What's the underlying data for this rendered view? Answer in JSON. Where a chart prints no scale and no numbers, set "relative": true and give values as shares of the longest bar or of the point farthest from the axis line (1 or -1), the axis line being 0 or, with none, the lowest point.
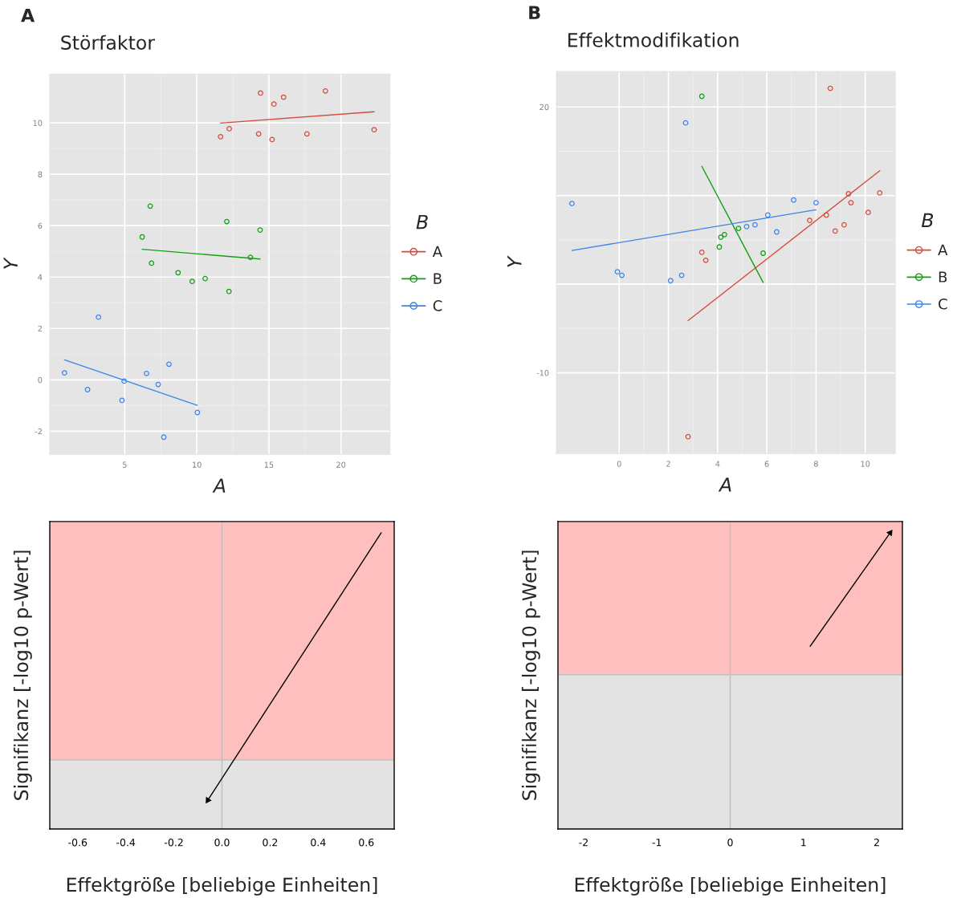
{
  "chart_data": [
    {
      "type": "scatter",
      "title": "Störfaktor",
      "xlabel": "A",
      "ylabel": "Y",
      "legend_title": "B",
      "annotations": [
        "A"
      ],
      "xlim": [
        -0.2,
        23.4
      ],
      "ylim": [
        -2.9,
        11.9
      ],
      "xticks": [
        5,
        10,
        15,
        20
      ],
      "yticks": [
        -2,
        0,
        2,
        4,
        6,
        8,
        10
      ],
      "grid": true,
      "legend": "right",
      "marker": "circle",
      "series": [
        {
          "name": "A",
          "color": "#d44b3d",
          "x": [
            11.65,
            12.25,
            14.42,
            14.29,
            15.22,
            15.35,
            16.02,
            17.64,
            18.92,
            22.3
          ],
          "values": [
            9.46,
            9.77,
            11.16,
            9.57,
            9.35,
            10.73,
            11.0,
            9.57,
            11.24,
            9.73
          ]
        },
        {
          "name": "B",
          "color": "#10a010",
          "x": [
            6.77,
            6.21,
            6.86,
            8.7,
            9.68,
            10.58,
            12.08,
            12.23,
            13.72,
            14.39
          ],
          "values": [
            6.76,
            5.56,
            4.54,
            4.17,
            3.83,
            3.94,
            6.16,
            3.44,
            4.77,
            5.83
          ]
        },
        {
          "name": "C",
          "color": "#3d85e8",
          "x": [
            0.82,
            2.42,
            3.18,
            4.81,
            4.96,
            6.51,
            7.32,
            8.07,
            7.71,
            10.04
          ],
          "values": [
            0.27,
            -0.38,
            2.44,
            -0.8,
            -0.05,
            0.25,
            -0.18,
            0.61,
            -2.23,
            -1.27
          ]
        },
        {
          "type": "line",
          "marker": "none",
          "color": "#d44b3d",
          "x": [
            11.65,
            22.3
          ],
          "values": [
            9.99,
            10.43
          ]
        },
        {
          "type": "line",
          "marker": "none",
          "color": "#10a010",
          "x": [
            6.21,
            14.39
          ],
          "values": [
            5.08,
            4.7
          ]
        },
        {
          "type": "line",
          "marker": "none",
          "color": "#3d85e8",
          "x": [
            0.82,
            10.04
          ],
          "values": [
            0.78,
            -0.99
          ]
        }
      ]
    },
    {
      "type": "scatter",
      "title": "Effektmodifikation",
      "xlabel": "A",
      "ylabel": "Y",
      "legend_title": "B",
      "annotations": [
        "B"
      ],
      "xlim": [
        -2.55,
        11.22
      ],
      "ylim": [
        -19.1,
        24.0
      ],
      "xticks": [
        0,
        2,
        4,
        6,
        8,
        10
      ],
      "yticks": [
        {
          "value": -10,
          "label": "-10"
        },
        {
          "value": 0,
          "label": null
        },
        {
          "value": 10,
          "label": null
        },
        20
      ],
      "grid": true,
      "legend": "right",
      "marker": "circle",
      "series": [
        {
          "name": "A",
          "color": "#d44b3d",
          "x": [
            8.58,
            3.36,
            3.52,
            2.8,
            7.74,
            8.42,
            8.78,
            9.14,
            9.32,
            9.42,
            10.12,
            10.59
          ],
          "values": [
            22.1,
            3.6,
            2.7,
            -17.2,
            7.2,
            7.8,
            6.0,
            6.7,
            10.2,
            9.2,
            8.1,
            10.3
          ]
        },
        {
          "name": "B",
          "color": "#10a010",
          "x": [
            3.36,
            4.07,
            4.13,
            4.28,
            4.85,
            5.85
          ],
          "values": [
            21.2,
            4.2,
            5.3,
            5.6,
            6.3,
            3.5
          ]
        },
        {
          "name": "C",
          "color": "#3d85e8",
          "x": [
            -1.92,
            -0.07,
            0.11,
            2.09,
            2.54,
            2.7,
            5.18,
            5.52,
            6.04,
            6.4,
            7.09,
            8.0
          ],
          "values": [
            9.1,
            1.4,
            1.0,
            0.4,
            1.0,
            18.2,
            6.5,
            6.7,
            7.8,
            5.9,
            9.5,
            9.2
          ]
        },
        {
          "type": "line",
          "marker": "none",
          "color": "#d44b3d",
          "x": [
            2.8,
            10.59
          ],
          "values": [
            -4.1,
            12.8
          ]
        },
        {
          "type": "line",
          "marker": "none",
          "color": "#10a010",
          "x": [
            3.36,
            5.85
          ],
          "values": [
            13.3,
            0.2
          ]
        },
        {
          "type": "line",
          "marker": "none",
          "color": "#3d85e8",
          "x": [
            -1.92,
            8.0
          ],
          "values": [
            3.8,
            8.4
          ]
        }
      ]
    },
    {
      "type": "line",
      "xlabel": "Effektgröße [beliebige Einheiten]",
      "ylabel": "Signifikanz [-log10 p-Wert]",
      "relative": true,
      "xlim": [
        -0.716,
        0.716
      ],
      "xticks": [
        -0.6,
        -0.4,
        -0.2,
        {
          "value": 0,
          "label": "0.0"
        },
        0.2,
        0.4,
        0.6
      ],
      "tick_labels": "x",
      "ref_lines": [
        {
          "axis": "x",
          "value": 0,
          "color": "#bebebe"
        },
        {
          "axis": "y",
          "value": 0.233,
          "color": "#c0c0c0"
        }
      ],
      "bands": [
        {
          "axis": "y",
          "from": 0.233,
          "to": 1.038,
          "color": "#ffbfbf"
        }
      ],
      "series": [
        {
          "color": "#000000",
          "x": [
            0.662,
            -0.059
          ],
          "values": [
            1,
            0.097
          ]
        }
      ]
    },
    {
      "type": "line",
      "xlabel": "Effektgröße [beliebige Einheiten]",
      "ylabel": "Signifikanz [-log10 p-Wert]",
      "relative": true,
      "xlim": [
        -2.35,
        2.35
      ],
      "xticks": [
        -2,
        -1,
        0,
        1,
        2
      ],
      "tick_labels": "x",
      "ref_lines": [
        {
          "axis": "x",
          "value": 0,
          "color": "#bebebe"
        },
        {
          "axis": "y",
          "value": 0.521,
          "color": "#c0c0c0"
        }
      ],
      "bands": [
        {
          "axis": "y",
          "from": 0.521,
          "to": 1.038,
          "color": "#ffbfbf"
        }
      ],
      "series": [
        {
          "color": "#000000",
          "x": [
            1.092,
            2.184
          ],
          "values": [
            0.617,
            1
          ]
        }
      ]
    }
  ]
}
